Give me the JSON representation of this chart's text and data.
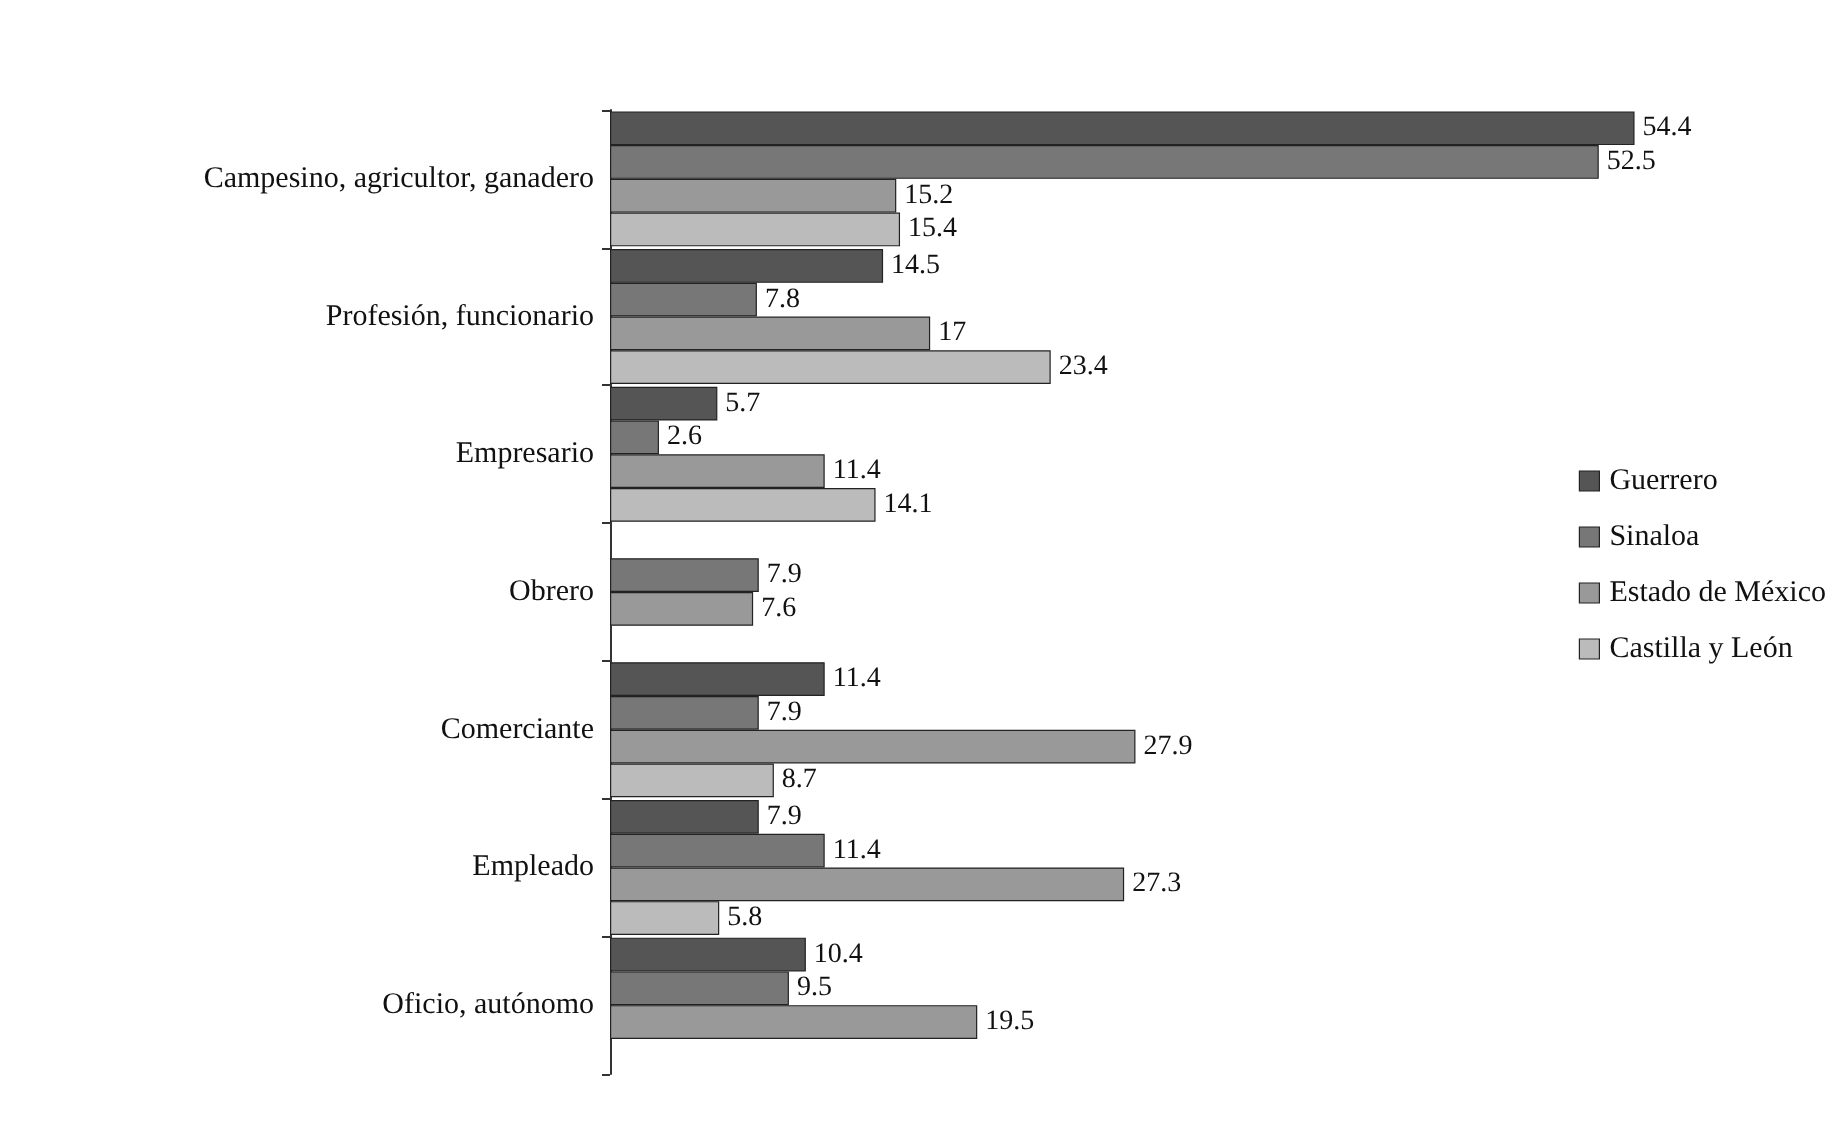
{
  "chart_data": {
    "type": "bar",
    "orientation": "horizontal",
    "categories": [
      "Campesino, agricultor, ganadero",
      "Profesión, funcionario",
      "Empresario",
      "Obrero",
      "Comerciante",
      "Empleado",
      "Oficio, autónomo"
    ],
    "series": [
      {
        "name": "Guerrero",
        "color": "#555555",
        "values": [
          54.4,
          14.5,
          5.7,
          null,
          11.4,
          7.9,
          10.4
        ]
      },
      {
        "name": "Sinaloa",
        "color": "#777777",
        "values": [
          52.5,
          7.8,
          2.6,
          7.9,
          7.9,
          11.4,
          9.5
        ]
      },
      {
        "name": "Estado de México",
        "color": "#999999",
        "values": [
          15.2,
          17,
          11.4,
          7.6,
          27.9,
          27.3,
          19.5
        ]
      },
      {
        "name": "Castilla y León",
        "color": "#bbbbbb",
        "values": [
          15.4,
          23.4,
          14.1,
          null,
          8.7,
          5.8,
          null
        ]
      }
    ],
    "tick_labels": "y",
    "data_labels": true,
    "legend": "right",
    "grid": false
  }
}
